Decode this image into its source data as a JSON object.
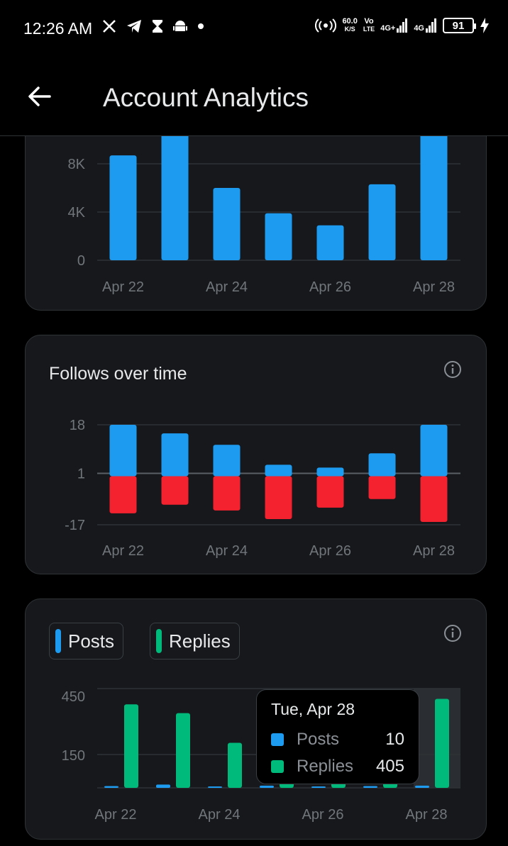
{
  "status_bar": {
    "time": "12:26 AM",
    "icons": [
      "x-icon",
      "telegram-icon",
      "hourglass-icon",
      "android-icon",
      "dot-icon"
    ],
    "net_speed": "60.0",
    "net_unit": "K/S",
    "volte": "Vo",
    "volte2": "LTE",
    "sig1": "4G+",
    "sig2": "4G",
    "battery": "91"
  },
  "header": {
    "title": "Account Analytics",
    "back_icon": "arrow-left-icon"
  },
  "colors": {
    "posts": "#1d9bf0",
    "replies": "#00ba7c",
    "follows": "#1d9bf0",
    "unfollows": "#f4212e"
  },
  "cards": {
    "follows": {
      "title": "Follows over time"
    },
    "posts_replies": {
      "legend_posts": "Posts",
      "legend_replies": "Replies",
      "tooltip": {
        "date": "Tue, Apr 28",
        "posts_label": "Posts",
        "posts_value": "10",
        "replies_label": "Replies",
        "replies_value": "405"
      }
    }
  },
  "chart_data": [
    {
      "type": "bar",
      "categories": [
        "Apr 22",
        "Apr 23",
        "Apr 24",
        "Apr 25",
        "Apr 26",
        "Apr 27",
        "Apr 28"
      ],
      "x_tick_labels": [
        "Apr 22",
        "Apr 24",
        "Apr 26",
        "Apr 28"
      ],
      "y_tick_labels": [
        "0",
        "4K",
        "8K"
      ],
      "values": [
        8700,
        11000,
        6000,
        3900,
        2900,
        6300,
        11000
      ],
      "ylim": [
        0,
        10500
      ],
      "grid": true
    },
    {
      "type": "bar",
      "title": "Follows over time",
      "categories": [
        "Apr 22",
        "Apr 23",
        "Apr 24",
        "Apr 25",
        "Apr 26",
        "Apr 27",
        "Apr 28"
      ],
      "x_tick_labels": [
        "Apr 22",
        "Apr 24",
        "Apr 26",
        "Apr 28"
      ],
      "y_tick_labels": [
        "18",
        "1",
        "-17"
      ],
      "series": [
        {
          "values": [
            18,
            15,
            11,
            4,
            3,
            8,
            18
          ]
        },
        {
          "values": [
            -13,
            -10,
            -12,
            -15,
            -11,
            -8,
            -16
          ]
        }
      ],
      "ylim": [
        -17,
        18
      ],
      "grid": true
    },
    {
      "type": "bar",
      "categories": [
        "Apr 22",
        "Apr 23",
        "Apr 24",
        "Apr 25",
        "Apr 26",
        "Apr 27",
        "Apr 28"
      ],
      "x_tick_labels": [
        "Apr 22",
        "Apr 24",
        "Apr 26",
        "Apr 28"
      ],
      "y_tick_labels": [
        "150",
        "450"
      ],
      "series": [
        {
          "name": "Posts",
          "values": [
            8,
            15,
            4,
            10,
            6,
            8,
            10
          ]
        },
        {
          "name": "Replies",
          "values": [
            380,
            340,
            205,
            30,
            30,
            30,
            405
          ]
        }
      ],
      "ylim": [
        0,
        500
      ],
      "grid": true,
      "highlighted_category": "Apr 28"
    }
  ]
}
